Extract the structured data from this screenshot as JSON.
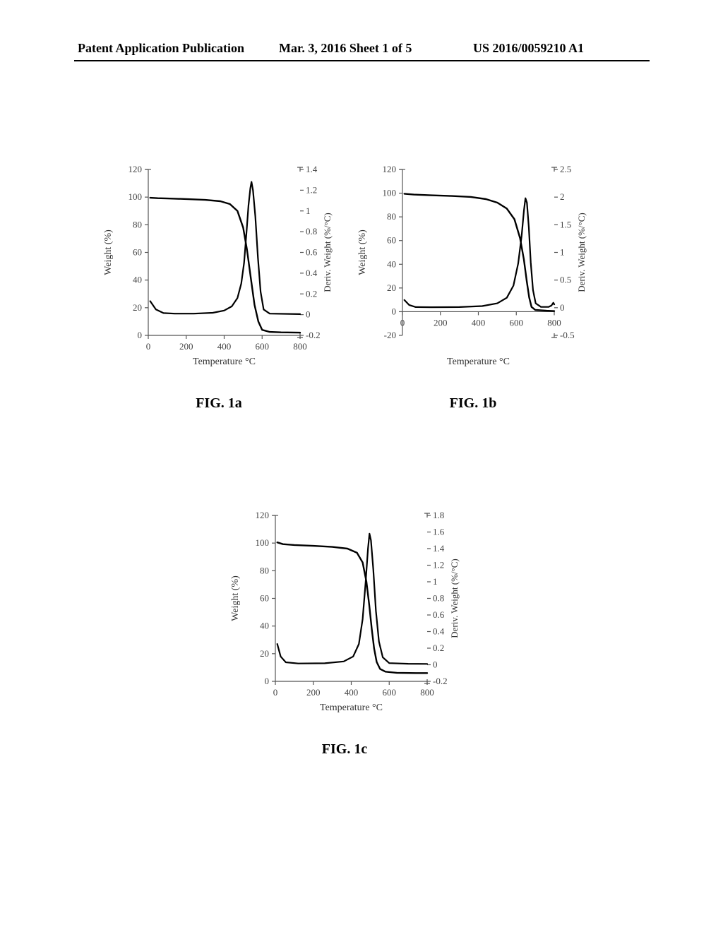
{
  "header": {
    "left": "Patent Application Publication",
    "center": "Mar. 3, 2016  Sheet 1 of 5",
    "right": "US 2016/0059210 A1"
  },
  "captions": {
    "fig1a": "FIG. 1a",
    "fig1b": "FIG. 1b",
    "fig1c": "FIG. 1c"
  },
  "axisLabels": {
    "xlabel": "Temperature °C",
    "ylabel_left": "Weight (%)",
    "ylabel_right": "Deriv. Weight (%/°C)"
  },
  "style": {
    "line_color": "#000000",
    "line_width_weight": 2.4,
    "line_width_deriv": 2.2,
    "axis_color": "#555555",
    "axis_width": 1.2,
    "tick_font_size": 13,
    "label_font_size": 14,
    "rlabel_font_size": 13,
    "plot_bg": "#ffffff"
  },
  "fig1a": {
    "type": "line-dual-axis",
    "xlim": [
      0,
      800
    ],
    "xticks": [
      0,
      200,
      400,
      600,
      800
    ],
    "ylim_left": [
      0,
      120
    ],
    "yticks_left": [
      0,
      20,
      40,
      60,
      80,
      100,
      120
    ],
    "ylim_right": [
      -0.2,
      1.4
    ],
    "yticks_right": [
      -0.2,
      0,
      0.2,
      0.4,
      0.6,
      0.8,
      1,
      1.2,
      1.4
    ],
    "series_weight": [
      [
        10,
        99.5
      ],
      [
        50,
        99.2
      ],
      [
        100,
        99
      ],
      [
        200,
        98.6
      ],
      [
        300,
        98
      ],
      [
        380,
        97
      ],
      [
        430,
        95
      ],
      [
        470,
        90
      ],
      [
        500,
        78
      ],
      [
        520,
        62
      ],
      [
        540,
        42
      ],
      [
        560,
        22
      ],
      [
        580,
        10
      ],
      [
        600,
        4
      ],
      [
        640,
        2.5
      ],
      [
        700,
        2.2
      ],
      [
        800,
        2
      ]
    ],
    "series_deriv": [
      [
        10,
        0.13
      ],
      [
        40,
        0.05
      ],
      [
        80,
        0.015
      ],
      [
        140,
        0.01
      ],
      [
        240,
        0.01
      ],
      [
        340,
        0.018
      ],
      [
        400,
        0.04
      ],
      [
        440,
        0.08
      ],
      [
        470,
        0.16
      ],
      [
        490,
        0.3
      ],
      [
        505,
        0.5
      ],
      [
        518,
        0.8
      ],
      [
        528,
        1.05
      ],
      [
        538,
        1.22
      ],
      [
        544,
        1.28
      ],
      [
        552,
        1.2
      ],
      [
        564,
        0.95
      ],
      [
        578,
        0.55
      ],
      [
        592,
        0.22
      ],
      [
        608,
        0.05
      ],
      [
        640,
        0.01
      ],
      [
        800,
        0.005
      ]
    ]
  },
  "fig1b": {
    "type": "line-dual-axis",
    "xlim": [
      0,
      800
    ],
    "xticks": [
      0,
      200,
      400,
      600,
      800
    ],
    "ylim_left": [
      -20,
      120
    ],
    "yticks_left": [
      -20,
      0,
      20,
      40,
      60,
      80,
      100,
      120
    ],
    "ylim_right": [
      -0.5,
      2.5
    ],
    "yticks_right": [
      -0.5,
      0,
      0.5,
      1,
      1.5,
      2,
      2.5
    ],
    "series_weight": [
      [
        10,
        99.5
      ],
      [
        60,
        98.8
      ],
      [
        150,
        98.2
      ],
      [
        260,
        97.6
      ],
      [
        360,
        96.8
      ],
      [
        440,
        95
      ],
      [
        500,
        92
      ],
      [
        550,
        87
      ],
      [
        590,
        78
      ],
      [
        620,
        62
      ],
      [
        640,
        44
      ],
      [
        655,
        26
      ],
      [
        668,
        12
      ],
      [
        680,
        4
      ],
      [
        700,
        1.5
      ],
      [
        760,
        0.8
      ],
      [
        800,
        0.5
      ]
    ],
    "series_deriv": [
      [
        10,
        0.14
      ],
      [
        35,
        0.05
      ],
      [
        70,
        0.012
      ],
      [
        150,
        0.01
      ],
      [
        300,
        0.012
      ],
      [
        420,
        0.03
      ],
      [
        500,
        0.08
      ],
      [
        550,
        0.18
      ],
      [
        585,
        0.4
      ],
      [
        610,
        0.8
      ],
      [
        628,
        1.3
      ],
      [
        640,
        1.75
      ],
      [
        648,
        1.98
      ],
      [
        656,
        1.9
      ],
      [
        666,
        1.45
      ],
      [
        676,
        0.82
      ],
      [
        688,
        0.32
      ],
      [
        702,
        0.08
      ],
      [
        730,
        0.015
      ],
      [
        770,
        0.015
      ],
      [
        785,
        0.04
      ],
      [
        795,
        0.09
      ],
      [
        800,
        0.06
      ]
    ]
  },
  "fig1c": {
    "type": "line-dual-axis",
    "xlim": [
      0,
      800
    ],
    "xticks": [
      0,
      200,
      400,
      600,
      800
    ],
    "ylim_left": [
      0,
      120
    ],
    "yticks_left": [
      0,
      20,
      40,
      60,
      80,
      100,
      120
    ],
    "ylim_right": [
      -0.2,
      1.8
    ],
    "yticks_right": [
      -0.2,
      0,
      0.2,
      0.4,
      0.6,
      0.8,
      1,
      1.2,
      1.4,
      1.6,
      1.8
    ],
    "series_weight": [
      [
        10,
        100.5
      ],
      [
        40,
        99.2
      ],
      [
        100,
        98.6
      ],
      [
        200,
        98
      ],
      [
        300,
        97.2
      ],
      [
        380,
        96
      ],
      [
        430,
        93
      ],
      [
        460,
        86
      ],
      [
        480,
        72
      ],
      [
        495,
        55
      ],
      [
        508,
        38
      ],
      [
        520,
        24
      ],
      [
        534,
        14
      ],
      [
        552,
        9
      ],
      [
        580,
        7
      ],
      [
        640,
        6.2
      ],
      [
        740,
        6
      ],
      [
        800,
        6
      ]
    ],
    "series_deriv": [
      [
        10,
        0.25
      ],
      [
        28,
        0.1
      ],
      [
        55,
        0.03
      ],
      [
        120,
        0.015
      ],
      [
        260,
        0.018
      ],
      [
        360,
        0.04
      ],
      [
        410,
        0.1
      ],
      [
        440,
        0.25
      ],
      [
        460,
        0.55
      ],
      [
        476,
        1.0
      ],
      [
        488,
        1.4
      ],
      [
        496,
        1.58
      ],
      [
        504,
        1.5
      ],
      [
        516,
        1.15
      ],
      [
        530,
        0.65
      ],
      [
        546,
        0.28
      ],
      [
        566,
        0.09
      ],
      [
        600,
        0.02
      ],
      [
        700,
        0.012
      ],
      [
        800,
        0.01
      ]
    ]
  }
}
